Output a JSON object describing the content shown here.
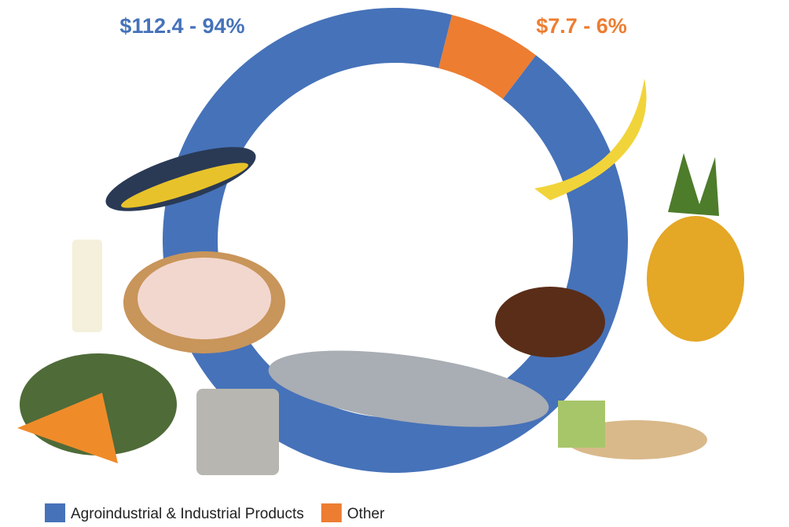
{
  "chart_data": {
    "type": "donut",
    "categories": [
      "Agroindustrial & Industrial Products",
      "Other"
    ],
    "values": [
      112.4,
      7.7
    ],
    "value_labels": [
      "$112.4 - 94%",
      "$7.7 - 6%"
    ],
    "colors": [
      "#4672b9",
      "#ed7d31"
    ],
    "legend": "bottom"
  }
}
